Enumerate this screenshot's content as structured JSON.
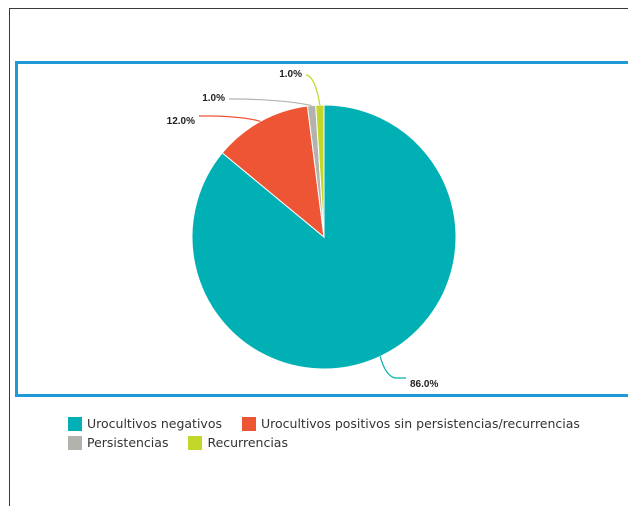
{
  "chart_data": {
    "type": "pie",
    "categories": [
      "Urocultivos negativos",
      "Urocultivos positivos sin persistencias/recurrencias",
      "Persistencias",
      "Recurrencias"
    ],
    "values": [
      86.0,
      12.0,
      1.0,
      1.0
    ],
    "labels": [
      "86.0%",
      "12.0%",
      "1.0%",
      "1.0%"
    ],
    "colors": [
      "#00b0b4",
      "#ee5535",
      "#b3b3ae",
      "#c3d62a"
    ],
    "legend_placement": "bottom"
  }
}
